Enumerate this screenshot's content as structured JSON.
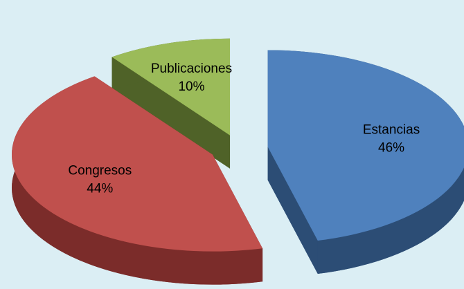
{
  "chart_data": {
    "type": "pie",
    "categories": [
      "Estancias",
      "Congresos",
      "Publicaciones"
    ],
    "values": [
      46,
      44,
      10
    ],
    "value_labels": [
      "46%",
      "44%",
      "10%"
    ],
    "colors": [
      "#4f81bd",
      "#c0504d",
      "#9bbb59"
    ],
    "side_colors": [
      "#2c4d75",
      "#7b2c2a",
      "#4f6228"
    ],
    "exploded": true,
    "three_d": true
  }
}
